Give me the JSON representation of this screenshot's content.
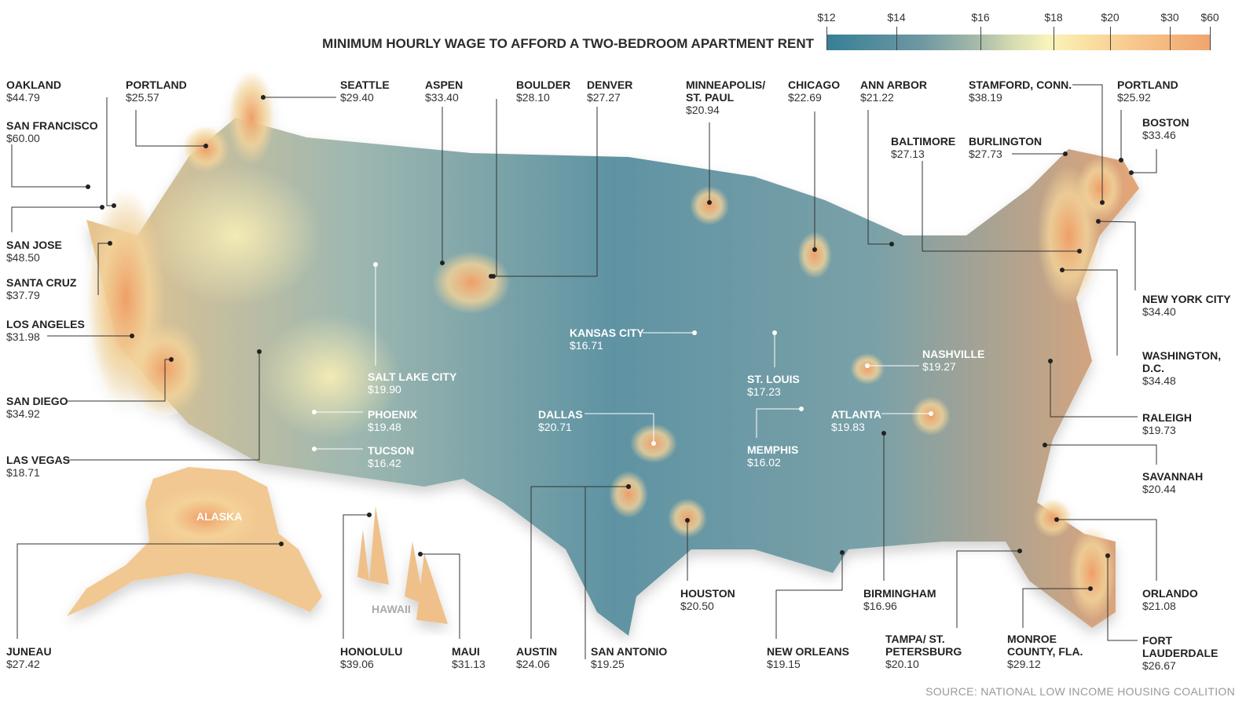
{
  "title": "MINIMUM HOURLY WAGE TO AFFORD A TWO-BEDROOM APARTMENT RENT",
  "legend": {
    "ticks": [
      "$12",
      "$14",
      "$16",
      "$18",
      "$20",
      "$30",
      "$60"
    ],
    "colors": {
      "low": "#367f96",
      "mid": "#f9f4bb",
      "high": "#f0a56f"
    }
  },
  "regions": {
    "alaska": "ALASKA",
    "hawaii": "HAWAII"
  },
  "cities": [
    {
      "name": "Oakland",
      "wage": "$44.79"
    },
    {
      "name": "San Francisco",
      "wage": "$60.00"
    },
    {
      "name": "San Jose",
      "wage": "$48.50"
    },
    {
      "name": "Santa Cruz",
      "wage": "$37.79"
    },
    {
      "name": "Los Angeles",
      "wage": "$31.98"
    },
    {
      "name": "San Diego",
      "wage": "$34.92"
    },
    {
      "name": "Las Vegas",
      "wage": "$18.71"
    },
    {
      "name": "Portland",
      "wage": "$25.57"
    },
    {
      "name": "Seattle",
      "wage": "$29.40"
    },
    {
      "name": "Aspen",
      "wage": "$33.40"
    },
    {
      "name": "Boulder",
      "wage": "$28.10"
    },
    {
      "name": "Denver",
      "wage": "$27.27"
    },
    {
      "name": "Minneapolis/ St. Paul",
      "wage": "$20.94"
    },
    {
      "name": "Chicago",
      "wage": "$22.69"
    },
    {
      "name": "Ann Arbor",
      "wage": "$21.22"
    },
    {
      "name": "Stamford, Conn.",
      "wage": "$38.19"
    },
    {
      "name": "Portland",
      "wage": "$25.92"
    },
    {
      "name": "Boston",
      "wage": "$33.46"
    },
    {
      "name": "Baltimore",
      "wage": "$27.13"
    },
    {
      "name": "Burlington",
      "wage": "$27.73"
    },
    {
      "name": "New York City",
      "wage": "$34.40"
    },
    {
      "name": "Washington, D.C.",
      "wage": "$34.48"
    },
    {
      "name": "Raleigh",
      "wage": "$19.73"
    },
    {
      "name": "Savannah",
      "wage": "$20.44"
    },
    {
      "name": "Orlando",
      "wage": "$21.08"
    },
    {
      "name": "Fort Lauderdale",
      "wage": "$26.67"
    },
    {
      "name": "Monroe County, Fla.",
      "wage": "$29.12"
    },
    {
      "name": "Tampa/ St. Petersburg",
      "wage": "$20.10"
    },
    {
      "name": "Birmingham",
      "wage": "$16.96"
    },
    {
      "name": "New Orleans",
      "wage": "$19.15"
    },
    {
      "name": "Houston",
      "wage": "$20.50"
    },
    {
      "name": "San Antonio",
      "wage": "$19.25"
    },
    {
      "name": "Austin",
      "wage": "$24.06"
    },
    {
      "name": "Maui",
      "wage": "$31.13"
    },
    {
      "name": "Honolulu",
      "wage": "$39.06"
    },
    {
      "name": "Juneau",
      "wage": "$27.42"
    },
    {
      "name": "Salt Lake City",
      "wage": "$19.90"
    },
    {
      "name": "Phoenix",
      "wage": "$19.48"
    },
    {
      "name": "Tucson",
      "wage": "$16.42"
    },
    {
      "name": "Kansas City",
      "wage": "$16.71"
    },
    {
      "name": "Dallas",
      "wage": "$20.71"
    },
    {
      "name": "St. Louis",
      "wage": "$17.23"
    },
    {
      "name": "Memphis",
      "wage": "$16.02"
    },
    {
      "name": "Atlanta",
      "wage": "$19.83"
    },
    {
      "name": "Nashville",
      "wage": "$19.27"
    }
  ],
  "source": "SOURCE: NATIONAL LOW INCOME HOUSING COALITION"
}
